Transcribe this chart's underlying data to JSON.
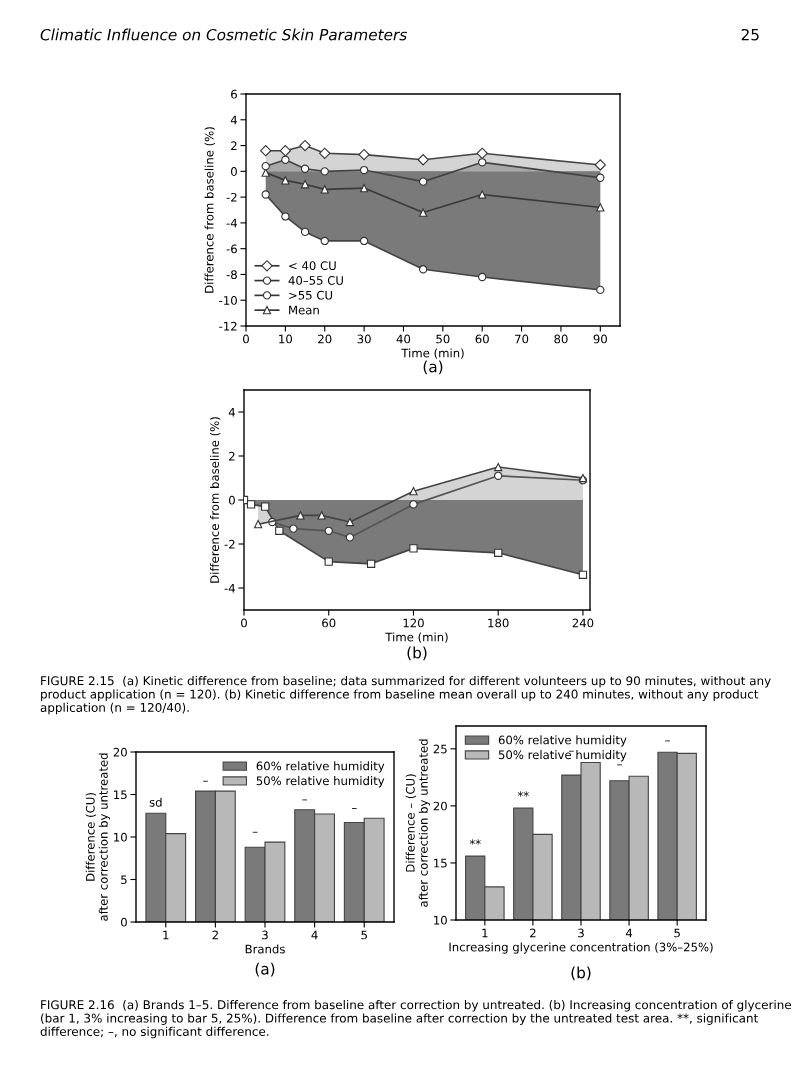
{
  "chart_data": [
    {
      "type": "line",
      "xlabel": "Time (min)",
      "ylabel": "Difference from baseline (%)",
      "xlim": [
        0,
        95
      ],
      "ylim": [
        -12,
        6
      ],
      "xticks": [
        0,
        10,
        20,
        30,
        40,
        50,
        60,
        70,
        80,
        90
      ],
      "yticks": [
        -12,
        -10,
        -8,
        -6,
        -4,
        -2,
        0,
        2,
        4,
        6
      ],
      "legend": "bottom left",
      "grid": false,
      "x": [
        5,
        10,
        15,
        20,
        30,
        45,
        60,
        90
      ],
      "series": [
        {
          "name": "< 40 CU",
          "type": "area",
          "color": "#d4d4d4",
          "marker": "diamond",
          "values": [
            1.6,
            1.6,
            2.0,
            1.4,
            1.3,
            0.9,
            1.4,
            0.5
          ]
        },
        {
          "name": "40–55 CU",
          "type": "area",
          "color": "#a8a8a8",
          "marker": "circle",
          "values": [
            0.4,
            0.9,
            0.2,
            0.0,
            0.1,
            -0.8,
            0.7,
            -0.5
          ]
        },
        {
          "name": ">55 CU",
          "type": "area",
          "color": "#7a7a7a",
          "marker": "circle",
          "values": [
            -1.8,
            -3.5,
            -4.7,
            -5.4,
            -5.4,
            -7.6,
            -8.2,
            -9.2
          ]
        },
        {
          "name": "Mean",
          "type": "line",
          "color": "#3a3a3a",
          "marker": "triangle",
          "values": [
            -0.1,
            -0.7,
            -1.0,
            -1.4,
            -1.3,
            -3.2,
            -1.8,
            -2.8
          ]
        }
      ],
      "annotations": [
        "Climatic Influence on Cosmetic Skin Parameters",
        "25",
        "(a)"
      ]
    },
    {
      "type": "line",
      "xlabel": "Time (min)",
      "ylabel": "Difference from baseline (%)",
      "xlim": [
        0,
        245
      ],
      "ylim": [
        -5,
        5
      ],
      "xticks": [
        0,
        60,
        120,
        180,
        240
      ],
      "yticks": [
        -4,
        -2,
        0,
        2,
        4
      ],
      "grid": false,
      "series": [
        {
          "type": "area",
          "color": "#d4d4d4",
          "marker": "triangle",
          "x": [
            10,
            40,
            55,
            75,
            120,
            180,
            240
          ],
          "values": [
            -1.1,
            -0.7,
            -0.7,
            -1.0,
            0.4,
            1.5,
            1.0
          ]
        },
        {
          "type": "line",
          "color": "#555555",
          "marker": "circle",
          "x": [
            20,
            35,
            60,
            75,
            120,
            180,
            240
          ],
          "values": [
            -1.0,
            -1.3,
            -1.4,
            -1.7,
            -0.2,
            1.1,
            0.9
          ]
        },
        {
          "type": "area",
          "color": "#7a7a7a",
          "marker": "square",
          "x": [
            0,
            5,
            15,
            25,
            60,
            90,
            120,
            180,
            240
          ],
          "values": [
            0,
            -0.2,
            -0.3,
            -1.4,
            -2.8,
            -2.9,
            -2.2,
            -2.4,
            -3.4
          ]
        }
      ],
      "annotations": [
        "(b)",
        "FIGURE 2.15  (a) Kinetic difference from baseline; data summarized for different volunteers up to 90 minutes, without any product application (n = 120). (b) Kinetic difference from baseline mean overall up to 240 minutes, without any product application (n = 120/40)."
      ]
    },
    {
      "type": "bar",
      "categories": [
        "1",
        "2",
        "3",
        "4",
        "5"
      ],
      "xlabel": "Brands",
      "ylabel": "Difference (CU)\nafter correction by untreated",
      "ylim": [
        0,
        20
      ],
      "yticks": [
        0,
        5,
        10,
        15,
        20
      ],
      "legend": "top right",
      "grid": false,
      "series": [
        {
          "name": "60% relative humidity",
          "color": "#7a7a7a",
          "values": [
            12.8,
            15.4,
            8.8,
            13.2,
            11.7
          ]
        },
        {
          "name": "50% relative humidity",
          "color": "#b8b8b8",
          "values": [
            10.4,
            15.4,
            9.4,
            12.7,
            12.2
          ]
        }
      ],
      "annotations": [
        {
          "text": "sd",
          "x": "1",
          "y": 13.3
        },
        {
          "text": "–",
          "x": "2",
          "y": 15.9
        },
        {
          "text": "–",
          "x": "3",
          "y": 9.9
        },
        {
          "text": "–",
          "x": "4",
          "y": 13.7
        },
        {
          "text": "–",
          "x": "5",
          "y": 12.7
        },
        "(a)"
      ]
    },
    {
      "type": "bar",
      "categories": [
        "1",
        "2",
        "3",
        "4",
        "5"
      ],
      "xlabel": "Increasing glycerine concentration (3%–25%)",
      "ylabel": "Difference – (CU)\nafter correction by untreated",
      "ylim": [
        10,
        27
      ],
      "yticks": [
        10,
        15,
        20,
        25
      ],
      "legend": "top left",
      "grid": false,
      "series": [
        {
          "name": "60% relative humidity",
          "color": "#7a7a7a",
          "values": [
            15.6,
            19.8,
            22.7,
            22.2,
            24.7
          ]
        },
        {
          "name": "50% relative humidity",
          "color": "#b8b8b8",
          "values": [
            12.9,
            17.5,
            23.8,
            22.6,
            24.6
          ]
        }
      ],
      "annotations": [
        {
          "text": "**",
          "x": "1",
          "y": 16.1
        },
        {
          "text": "**",
          "x": "2",
          "y": 20.3
        },
        {
          "text": "–",
          "x": "3",
          "y": 24.3
        },
        {
          "text": "–",
          "x": "4",
          "y": 23.1
        },
        {
          "text": "–",
          "x": "5",
          "y": 25.2
        },
        "(b)",
        "FIGURE 2.16  (a) Brands 1–5. Difference from baseline after correction by untreated. (b) Increasing concentration of glycerine (bar 1, 3% increasing to bar 5, 25%). Difference from baseline after correction by the untreated test area. **, significant difference; –, no significant difference."
      ]
    }
  ]
}
